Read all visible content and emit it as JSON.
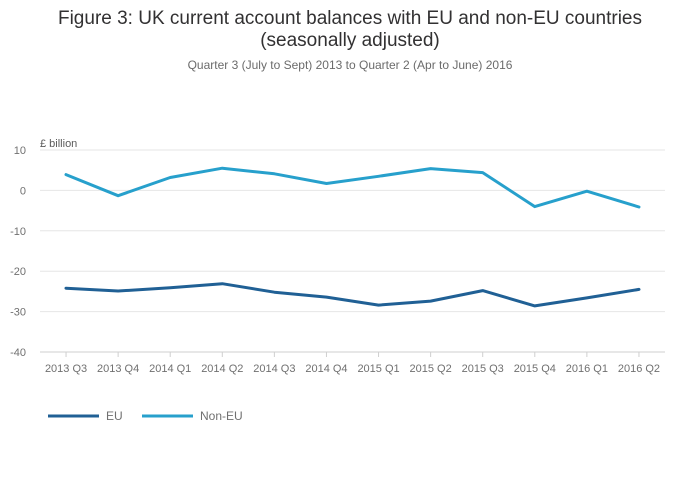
{
  "header": {
    "title": "Figure 3: UK current account balances with EU and non-EU countries\n(seasonally adjusted)",
    "subtitle": "Quarter 3 (July to Sept) 2013 to Quarter 2 (Apr to June) 2016"
  },
  "chart_data": {
    "type": "line",
    "title": "Figure 3: UK current account balances with EU and non-EU countries (seasonally adjusted)",
    "subtitle": "Quarter 3 (July to Sept) 2013 to Quarter 2 (Apr to June) 2016",
    "xlabel": "",
    "ylabel": "£ billion",
    "ylim": [
      -40,
      10
    ],
    "yticks": [
      10,
      0,
      -10,
      -20,
      -30,
      -40
    ],
    "grid": true,
    "legend_position": "bottom-left",
    "categories": [
      "2013 Q3",
      "2013 Q4",
      "2014 Q1",
      "2014 Q2",
      "2014 Q3",
      "2014 Q4",
      "2015 Q1",
      "2015 Q2",
      "2015 Q3",
      "2015 Q4",
      "2016 Q1",
      "2016 Q2"
    ],
    "series": [
      {
        "name": "EU",
        "color": "#206095",
        "values": [
          -24.2,
          -24.9,
          -24.1,
          -23.1,
          -25.2,
          -26.4,
          -28.4,
          -27.4,
          -24.8,
          -28.6,
          -26.6,
          -24.5
        ]
      },
      {
        "name": "Non-EU",
        "color": "#27A0CC",
        "values": [
          3.9,
          -1.3,
          3.2,
          5.5,
          4.1,
          1.7,
          3.5,
          5.4,
          4.4,
          -4.0,
          -0.2,
          -4.1
        ]
      }
    ]
  }
}
